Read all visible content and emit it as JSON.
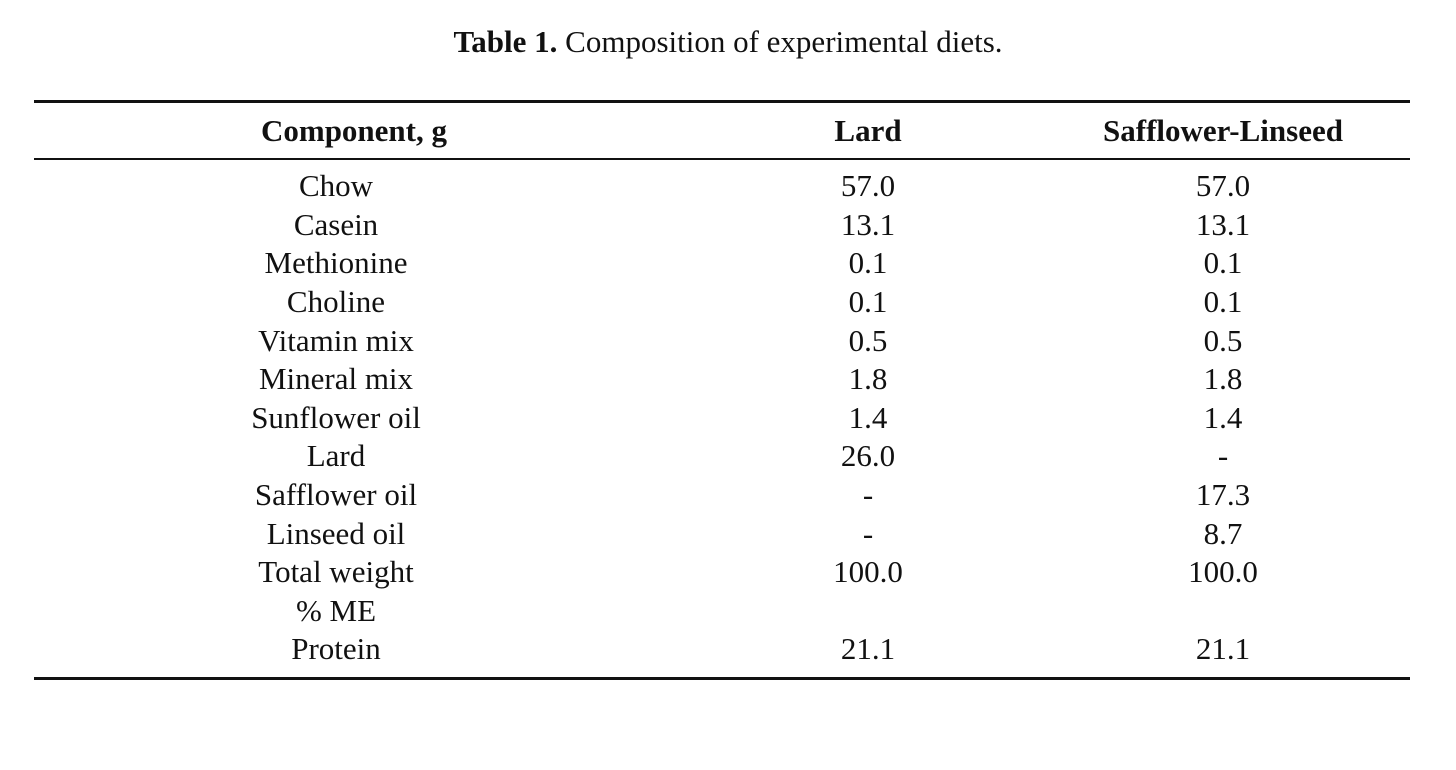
{
  "caption": {
    "label": "Table 1.",
    "text": "Composition of experimental diets."
  },
  "table": {
    "headers": [
      "Component, g",
      "Lard",
      "Safflower-Linseed"
    ],
    "rows": [
      [
        "Chow",
        "57.0",
        "57.0"
      ],
      [
        "Casein",
        "13.1",
        "13.1"
      ],
      [
        "Methionine",
        "0.1",
        "0.1"
      ],
      [
        "Choline",
        "0.1",
        "0.1"
      ],
      [
        "Vitamin mix",
        "0.5",
        "0.5"
      ],
      [
        "Mineral mix",
        "1.8",
        "1.8"
      ],
      [
        "Sunflower oil",
        "1.4",
        "1.4"
      ],
      [
        "Lard",
        "26.0",
        "-"
      ],
      [
        "Safflower oil",
        "-",
        "17.3"
      ],
      [
        "Linseed oil",
        "-",
        "8.7"
      ],
      [
        "Total weight",
        "100.0",
        "100.0"
      ],
      [
        "% ME",
        "",
        ""
      ],
      [
        "Protein",
        "21.1",
        "21.1"
      ]
    ]
  }
}
